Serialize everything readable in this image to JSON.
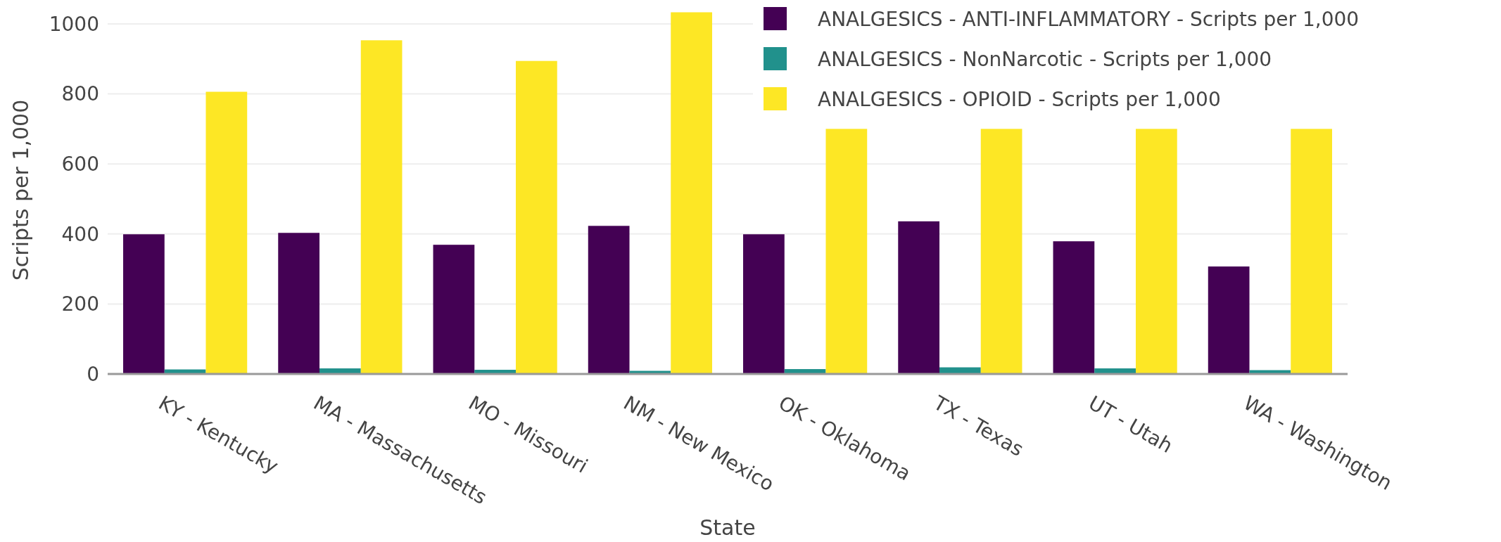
{
  "chart_data": {
    "type": "bar",
    "xlabel": "State",
    "ylabel": "Scripts per 1,000",
    "categories": [
      "KY - Kentucky",
      "MA - Massachusetts",
      "MO - Missouri",
      "NM - New Mexico",
      "OK - Oklahoma",
      "TX - Texas",
      "UT - Utah",
      "WA - Washington"
    ],
    "series": [
      {
        "name": "ANALGESICS - ANTI-INFLAMMATORY - Scripts per 1,000",
        "color": "#440154",
        "values": [
          399,
          403,
          369,
          423,
          399,
          436,
          379,
          307
        ]
      },
      {
        "name": "ANALGESICS - NonNarcotic - Scripts per 1,000",
        "color": "#21918c",
        "values": [
          13,
          16,
          12,
          9,
          14,
          19,
          16,
          11
        ]
      },
      {
        "name": "ANALGESICS - OPIOID - Scripts per 1,000",
        "color": "#fde725",
        "values": [
          806,
          953,
          894,
          1033,
          700,
          700,
          700,
          700
        ]
      }
    ],
    "ylim": [
      0,
      1050
    ],
    "yticks": [
      0,
      200,
      400,
      600,
      800,
      1000
    ],
    "grid": "y",
    "legend": "top right"
  }
}
